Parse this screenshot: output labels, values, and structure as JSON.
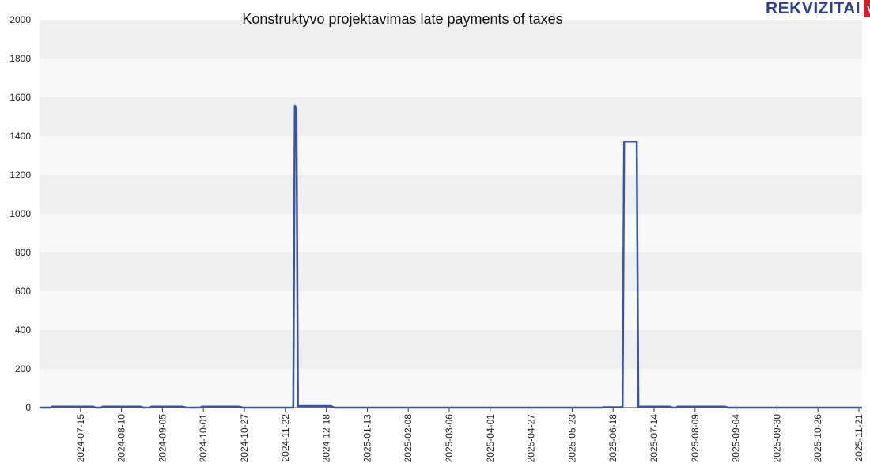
{
  "logo": {
    "text": "REKVIZITAI",
    "badge": "VŽ",
    "text_color": "#2e3f8f",
    "badge_color": "#c8232c"
  },
  "colors": {
    "line": "#3b54a0",
    "band_dark": "#efefef",
    "band_light": "#f8f8f8",
    "axis": "#333333"
  },
  "chart_data": {
    "type": "line",
    "title": "Konstruktyvo projektavimas late payments of taxes",
    "xlabel": "",
    "ylabel": "",
    "xlim": [
      "2024-06-19",
      "2025-11-23"
    ],
    "ylim": [
      0,
      2000
    ],
    "y_ticks": [
      0,
      200,
      400,
      600,
      800,
      1000,
      1200,
      1400,
      1600,
      1800,
      2000
    ],
    "x_ticks": [
      "2024-07-15",
      "2024-08-10",
      "2024-09-05",
      "2024-10-01",
      "2024-10-27",
      "2024-11-22",
      "2024-12-18",
      "2025-01-13",
      "2025-02-08",
      "2025-03-06",
      "2025-04-01",
      "2025-04-27",
      "2025-05-23",
      "2025-06-18",
      "2025-07-14",
      "2025-08-09",
      "2025-09-04",
      "2025-09-30",
      "2025-10-26",
      "2025-11-21"
    ],
    "grid": "horizontal-bands",
    "legend": "none",
    "series": [
      {
        "points": [
          [
            "2024-06-19",
            0
          ],
          [
            "2024-06-26",
            0
          ],
          [
            "2024-06-27",
            5
          ],
          [
            "2024-07-23",
            5
          ],
          [
            "2024-07-25",
            0
          ],
          [
            "2024-07-28",
            0
          ],
          [
            "2024-07-29",
            5
          ],
          [
            "2024-08-22",
            5
          ],
          [
            "2024-08-24",
            0
          ],
          [
            "2024-08-28",
            0
          ],
          [
            "2024-08-29",
            5
          ],
          [
            "2024-09-18",
            5
          ],
          [
            "2024-09-20",
            0
          ],
          [
            "2024-09-29",
            0
          ],
          [
            "2024-09-30",
            5
          ],
          [
            "2024-10-24",
            5
          ],
          [
            "2024-10-26",
            0
          ],
          [
            "2024-11-27",
            0
          ],
          [
            "2024-11-28",
            1555
          ],
          [
            "2024-11-29",
            1545
          ],
          [
            "2024-11-30",
            8
          ],
          [
            "2024-12-21",
            8
          ],
          [
            "2024-12-23",
            0
          ],
          [
            "2025-06-11",
            0
          ],
          [
            "2025-06-12",
            2
          ],
          [
            "2025-06-24",
            2
          ],
          [
            "2025-06-25",
            1370
          ],
          [
            "2025-07-03",
            1370
          ],
          [
            "2025-07-04",
            5
          ],
          [
            "2025-07-24",
            5
          ],
          [
            "2025-07-26",
            0
          ],
          [
            "2025-07-28",
            0
          ],
          [
            "2025-07-29",
            5
          ],
          [
            "2025-08-28",
            5
          ],
          [
            "2025-08-30",
            0
          ],
          [
            "2025-11-23",
            0
          ]
        ]
      }
    ]
  }
}
